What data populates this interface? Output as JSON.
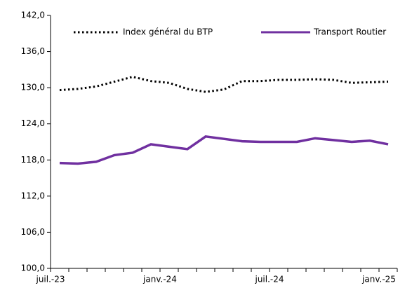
{
  "chart_data": {
    "type": "line",
    "categories": [
      "juil.-23",
      null,
      null,
      null,
      null,
      null,
      "janv.-24",
      null,
      null,
      null,
      null,
      null,
      "juil.-24",
      null,
      null,
      null,
      null,
      null,
      "janv.-25"
    ],
    "series": [
      {
        "name": "Index général du BTP",
        "color": "#000000",
        "dash": true,
        "values": [
          129.6,
          129.8,
          130.2,
          131.0,
          131.8,
          131.1,
          130.8,
          129.8,
          129.3,
          129.7,
          131.1,
          131.1,
          131.3,
          131.3,
          131.4,
          131.3,
          130.8,
          130.9,
          131.0
        ]
      },
      {
        "name": "Transport Routier",
        "color": "#7030a0",
        "dash": false,
        "values": [
          117.5,
          117.4,
          117.7,
          118.8,
          119.2,
          120.6,
          120.2,
          119.8,
          121.9,
          121.5,
          121.1,
          121.0,
          121.0,
          121.0,
          121.6,
          121.3,
          121.0,
          121.2,
          120.6
        ]
      }
    ],
    "ylim": [
      100,
      142
    ],
    "yticks": [
      {
        "value": 100,
        "label": "100,0"
      },
      {
        "value": 106,
        "label": "106,0"
      },
      {
        "value": 112,
        "label": "112,0"
      },
      {
        "value": 118,
        "label": "118,0"
      },
      {
        "value": 124,
        "label": "124,0"
      },
      {
        "value": 130,
        "label": "130,0"
      },
      {
        "value": 136,
        "label": "136,0"
      },
      {
        "value": 142,
        "label": "142,0"
      }
    ]
  }
}
